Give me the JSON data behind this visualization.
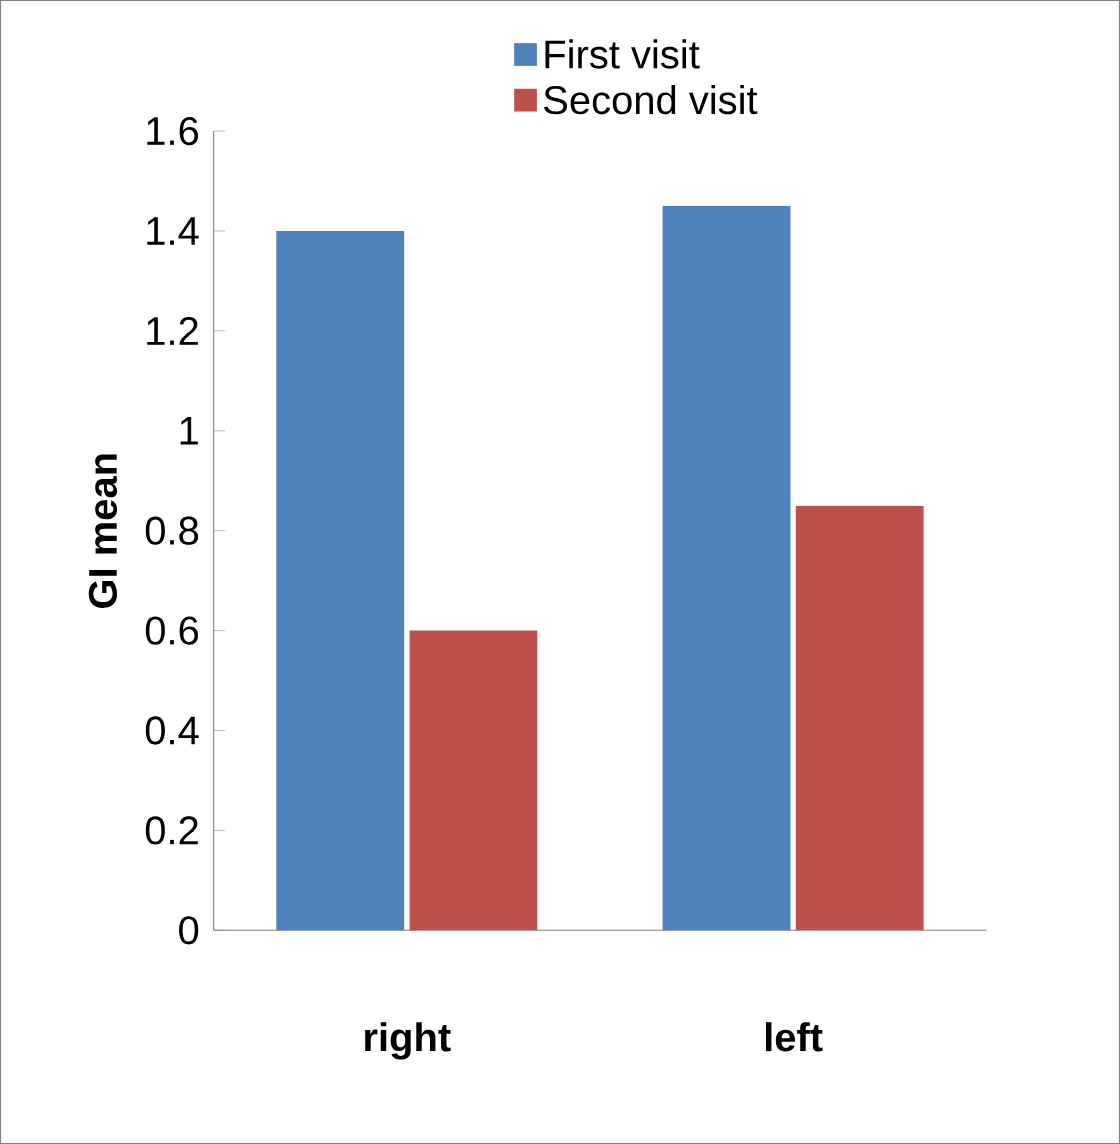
{
  "chart_data": {
    "type": "bar",
    "ylabel": "GI mean",
    "categories": [
      "right",
      "left"
    ],
    "series": [
      {
        "name": "First visit",
        "color": "#4f81bd",
        "values": [
          1.4,
          1.45
        ]
      },
      {
        "name": "Second visit",
        "color": "#c0504d",
        "values": [
          0.6,
          0.85
        ]
      }
    ],
    "ylim": [
      0,
      1.6
    ],
    "yticks": [
      0,
      0.2,
      0.4,
      0.6,
      0.8,
      1,
      1.2,
      1.4,
      1.6
    ],
    "legend": "top",
    "grid": false
  }
}
